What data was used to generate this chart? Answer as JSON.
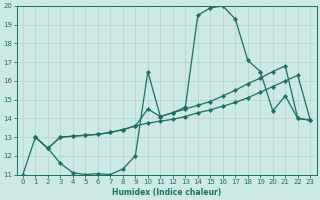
{
  "xlabel": "Humidex (Indice chaleur)",
  "background_color": "#cde8e5",
  "line_color": "#1a6e64",
  "grid_color": "#aed4cf",
  "spine_color": "#1a6e64",
  "xlim": [
    -0.5,
    23.5
  ],
  "ylim": [
    11,
    20
  ],
  "yticks": [
    11,
    12,
    13,
    14,
    15,
    16,
    17,
    18,
    19,
    20
  ],
  "xticks": [
    0,
    1,
    2,
    3,
    4,
    5,
    6,
    7,
    8,
    9,
    10,
    11,
    12,
    13,
    14,
    15,
    16,
    17,
    18,
    19,
    20,
    21,
    22,
    23
  ],
  "line1_x": [
    0,
    1,
    2,
    3,
    4,
    5,
    6,
    7,
    8,
    9,
    10,
    11,
    12,
    13,
    14,
    15,
    16,
    17,
    18,
    19,
    20,
    21,
    22,
    23
  ],
  "line1_y": [
    11.0,
    13.0,
    12.4,
    11.6,
    11.1,
    11.0,
    11.05,
    11.0,
    11.3,
    12.0,
    16.5,
    14.1,
    14.3,
    14.6,
    19.5,
    19.9,
    20.0,
    19.3,
    17.1,
    16.5,
    14.4,
    15.2,
    14.0,
    13.9
  ],
  "line2_x": [
    1,
    2,
    3,
    4,
    5,
    6,
    7,
    8,
    9,
    10,
    11,
    12,
    13,
    14,
    15,
    16,
    17,
    18,
    19,
    20,
    21,
    22,
    23
  ],
  "line2_y": [
    13.0,
    12.4,
    13.0,
    13.05,
    13.1,
    13.15,
    13.25,
    13.4,
    13.6,
    13.75,
    13.85,
    13.95,
    14.1,
    14.3,
    14.45,
    14.65,
    14.85,
    15.1,
    15.4,
    15.7,
    16.0,
    16.3,
    13.9
  ],
  "line3_x": [
    1,
    2,
    3,
    4,
    5,
    6,
    7,
    8,
    9,
    10,
    11,
    12,
    13,
    14,
    15,
    16,
    17,
    18,
    19,
    20,
    21,
    22,
    23
  ],
  "line3_y": [
    13.0,
    12.4,
    13.0,
    13.05,
    13.1,
    13.15,
    13.25,
    13.4,
    13.6,
    14.5,
    14.1,
    14.3,
    14.5,
    14.7,
    14.9,
    15.2,
    15.5,
    15.85,
    16.15,
    16.5,
    16.8,
    14.0,
    13.9
  ],
  "xlabel_fontsize": 5.5,
  "tick_fontsize": 5,
  "marker_size": 2.2,
  "linewidth": 0.9
}
